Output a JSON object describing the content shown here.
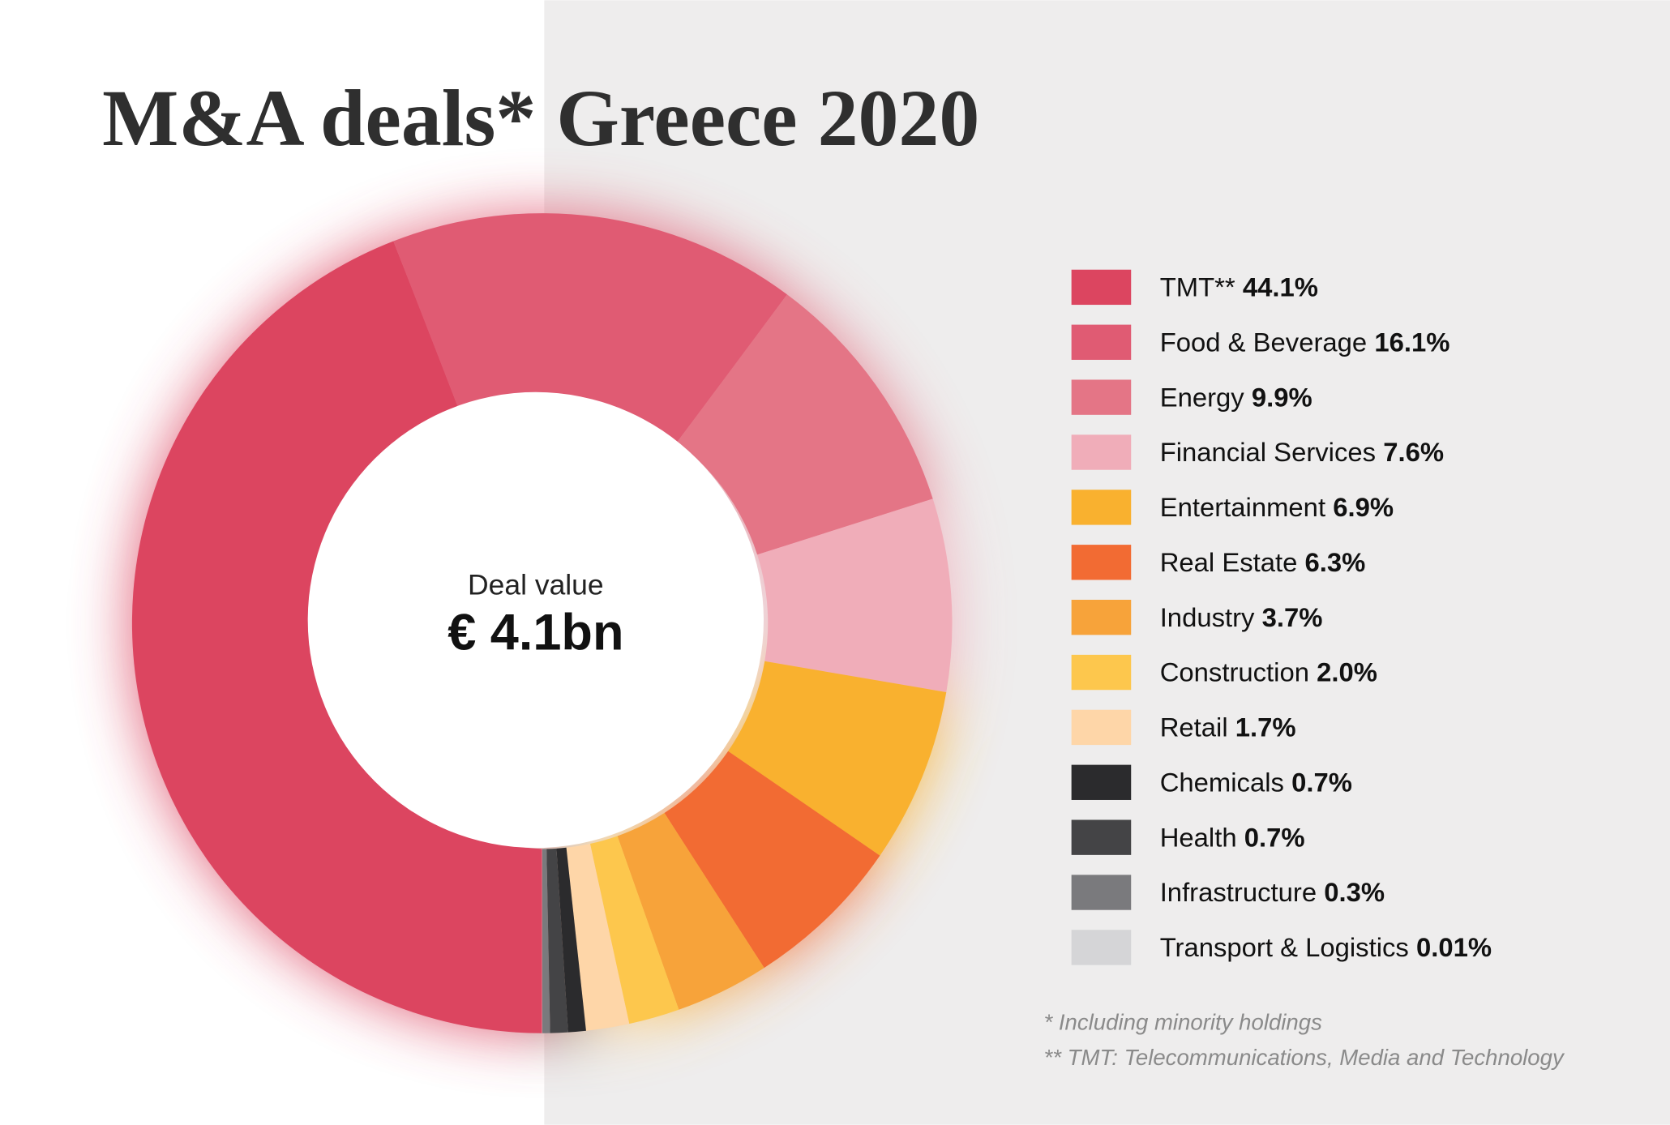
{
  "chart_data": {
    "type": "donut",
    "title": "M&A deals* Greece 2020",
    "center_label": "Deal value",
    "center_value": "€ 4.1bn",
    "categories": [
      "TMT**",
      "Food & Beverage",
      "Energy",
      "Financial Services",
      "Entertainment",
      "Real Estate",
      "Industry",
      "Construction",
      "Retail",
      "Chemicals",
      "Health",
      "Infrastructure",
      "Transport & Logistics"
    ],
    "values": [
      44.1,
      16.1,
      9.9,
      7.6,
      6.9,
      6.3,
      3.7,
      2.0,
      1.7,
      0.7,
      0.7,
      0.3,
      0.01
    ],
    "value_labels": [
      "44.1%",
      "16.1%",
      "9.9%",
      "7.6%",
      "6.9%",
      "6.3%",
      "3.7%",
      "2.0%",
      "1.7%",
      "0.7%",
      "0.7%",
      "0.3%",
      "0.01%"
    ],
    "colors": [
      "#dc4560",
      "#e05b73",
      "#e47586",
      "#f0adb9",
      "#f9b12f",
      "#f26b33",
      "#f7a33a",
      "#fdc74d",
      "#fed6a8",
      "#2b2b2d",
      "#444446",
      "#7a7a7d",
      "#d5d5d7"
    ],
    "footnotes": [
      "* Including minority holdings",
      "** TMT: Telecommunications, Media and Technology"
    ]
  }
}
